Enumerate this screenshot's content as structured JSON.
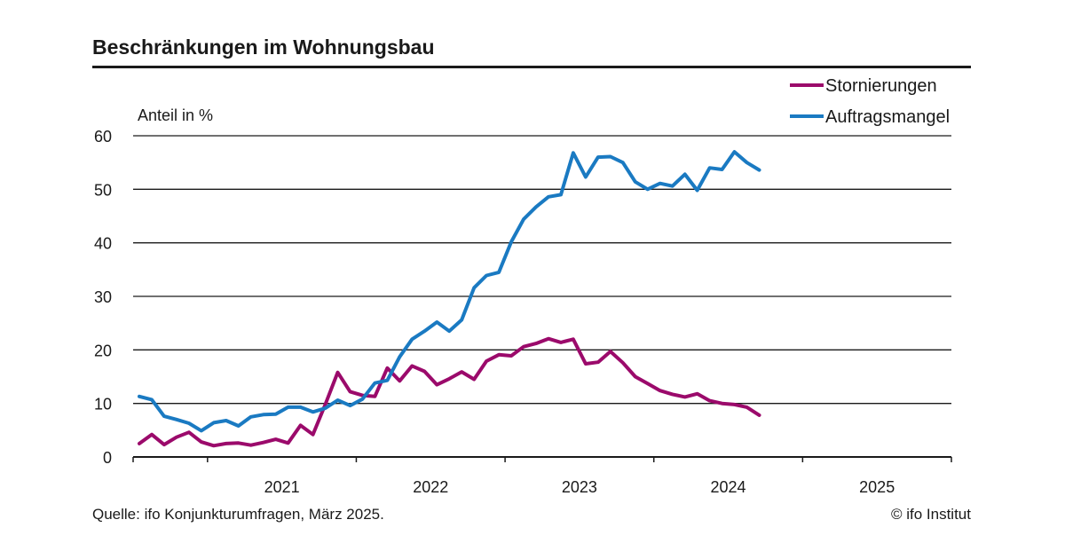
{
  "header": {
    "title": "Beschränkungen  im Wohnungsbau"
  },
  "footer": {
    "source": "Quelle: ifo Konjunkturumfragen, März 2025.",
    "copyright": "© ifo Institut"
  },
  "colors": {
    "stornierungen": "#9b0a6b",
    "auftragsmangel": "#1a7ac2",
    "grid": "#1a1a1a"
  },
  "chart_data": {
    "type": "line",
    "title": "Beschränkungen  im Wohnungsbau",
    "ylabel": "Anteil in %",
    "xlabel": "",
    "ylim": [
      0,
      60
    ],
    "yticks": [
      "0",
      "10",
      "20",
      "30",
      "40",
      "50",
      "60"
    ],
    "xlim": [
      "2020-07",
      "2025-12"
    ],
    "xtick_labels": [
      "2021",
      "2022",
      "2023",
      "2024",
      "2025"
    ],
    "grid": "horizontal",
    "legend_position": "top-right",
    "x": [
      "2020-07",
      "2020-08",
      "2020-09",
      "2020-10",
      "2020-11",
      "2020-12",
      "2021-01",
      "2021-02",
      "2021-03",
      "2021-04",
      "2021-05",
      "2021-06",
      "2021-07",
      "2021-08",
      "2021-09",
      "2021-10",
      "2021-11",
      "2021-12",
      "2022-01",
      "2022-02",
      "2022-03",
      "2022-04",
      "2022-05",
      "2022-06",
      "2022-07",
      "2022-08",
      "2022-09",
      "2022-10",
      "2022-11",
      "2022-12",
      "2023-01",
      "2023-02",
      "2023-03",
      "2023-04",
      "2023-05",
      "2023-06",
      "2023-07",
      "2023-08",
      "2023-09",
      "2023-10",
      "2023-11",
      "2023-12",
      "2024-01",
      "2024-02",
      "2024-03",
      "2024-04",
      "2024-05",
      "2024-06",
      "2024-07",
      "2024-08",
      "2024-09",
      "2024-10",
      "2024-11",
      "2024-12",
      "2025-01",
      "2025-02",
      "2025-03"
    ],
    "series": [
      {
        "name": "Stornierungen",
        "values": [
          2.5,
          4.2,
          2.3,
          3.7,
          4.6,
          2.8,
          2.1,
          2.5,
          2.6,
          2.2,
          2.7,
          3.3,
          2.6,
          5.9,
          4.2,
          9.8,
          15.8,
          12.2,
          11.5,
          11.3,
          16.6,
          14.2,
          17.0,
          16.0,
          13.5,
          14.6,
          15.9,
          14.5,
          17.9,
          19.1,
          18.9,
          20.6,
          21.2,
          22.1,
          21.4,
          22.0,
          17.4,
          17.7,
          19.7,
          17.6,
          15.0,
          13.7,
          12.4,
          11.7,
          11.2,
          11.8,
          10.5,
          10.0,
          9.8,
          9.3,
          7.8,
          null,
          null,
          null,
          null,
          null,
          null
        ],
        "color": "#9b0a6b"
      },
      {
        "name": "Auftragsmangel",
        "values": [
          11.3,
          10.7,
          7.6,
          7.0,
          6.3,
          4.9,
          6.4,
          6.8,
          5.8,
          7.5,
          7.9,
          8.0,
          9.3,
          9.3,
          8.4,
          9.1,
          10.6,
          9.6,
          10.8,
          13.8,
          14.3,
          18.7,
          22.0,
          23.5,
          25.2,
          23.5,
          25.6,
          31.6,
          33.9,
          34.5,
          40.2,
          44.4,
          46.7,
          48.6,
          49.0,
          56.8,
          52.3,
          56.0,
          56.1,
          55.0,
          51.4,
          50.0,
          51.1,
          50.6,
          52.8,
          49.8,
          54.0,
          53.7,
          57.0,
          55.0,
          53.6,
          null,
          null,
          null,
          null,
          null,
          null
        ],
        "color": "#1a7ac2"
      }
    ]
  }
}
